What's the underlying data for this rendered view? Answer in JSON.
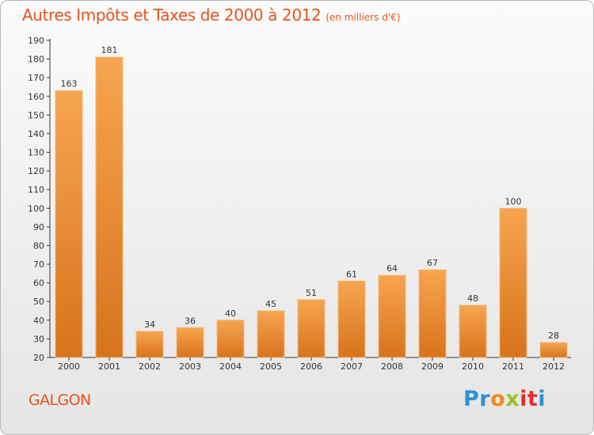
{
  "chart": {
    "title": "Autres Impôts et Taxes de 2000 à 2012",
    "unit": "(en milliers d'€)",
    "commune": "GALGON"
  },
  "logo": {
    "name": "Proxiti",
    "letters": [
      "P",
      "r",
      "o",
      "x",
      "i",
      "t",
      "i"
    ],
    "colors": [
      "#2e8fd6",
      "#2e8fd6",
      "#f08a1c",
      "#9bc21e",
      "#e4302b",
      "#e4302b",
      "#2e8fd6"
    ]
  },
  "colors": {
    "title": "#e8531c",
    "bar_light": "#f7a550",
    "bar_dark": "#d8731c"
  },
  "chart_data": {
    "type": "bar",
    "categories": [
      "2000",
      "2001",
      "2002",
      "2003",
      "2004",
      "2005",
      "2006",
      "2007",
      "2008",
      "2009",
      "2010",
      "2011",
      "2012"
    ],
    "values": [
      163,
      181,
      34,
      36,
      40,
      45,
      51,
      61,
      64,
      67,
      48,
      100,
      28
    ],
    "ylim": [
      20,
      190
    ],
    "yticks": [
      20,
      30,
      40,
      50,
      60,
      70,
      80,
      90,
      100,
      110,
      120,
      130,
      140,
      150,
      160,
      170,
      180,
      190
    ],
    "grid": false,
    "legend": "none"
  }
}
